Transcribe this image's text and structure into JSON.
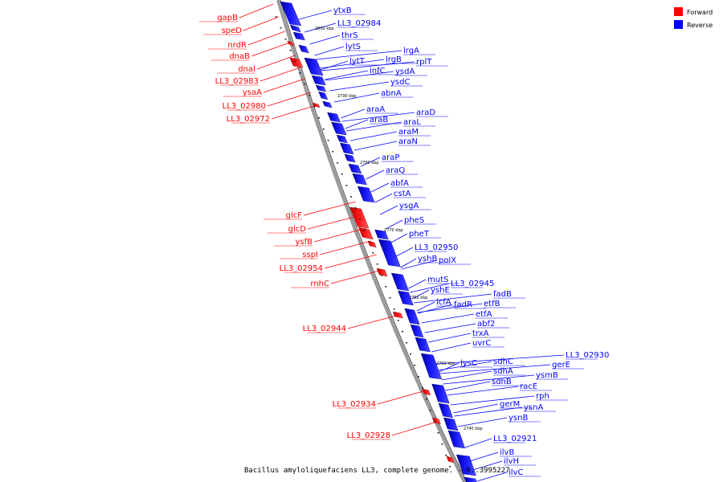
{
  "caption": "Bacillus amyloliquefaciens LL3, complete genome. - 0..3995227",
  "legend": [
    {
      "label": "Forward",
      "color": "#ff0000"
    },
    {
      "label": "Reverse",
      "color": "#0000ff"
    }
  ],
  "colors": {
    "forward": "#ff0000",
    "reverse": "#0000ff",
    "backbone": "#999999"
  },
  "ticks": [
    "2800 kbp",
    "2790 kbp",
    "2780 kbp",
    "2770 kbp",
    "2760 kbp",
    "2750 kbp",
    "2740 kbp"
  ],
  "forward_labels": [
    "gapB",
    "speD",
    "nrdR",
    "dnaB",
    "dnaI",
    "LL3_02983",
    "ysaA",
    "LL3_02980",
    "LL3_02972",
    "glcF",
    "glcD",
    "ysfB",
    "sspI",
    "LL3_02954",
    "rnhC",
    "LL3_02944",
    "LL3_02934",
    "LL3_02928"
  ],
  "reverse_labels": [
    "ytxB",
    "LL3_02984",
    "thrS",
    "lytS",
    "lytT",
    "lrgA",
    "lrgB",
    "rplT",
    "infC",
    "ysdA",
    "ysdC",
    "abnA",
    "araA",
    "araD",
    "araB",
    "araL",
    "araM",
    "araN",
    "araP",
    "araQ",
    "abfA",
    "cstA",
    "ysgA",
    "pheS",
    "pheT",
    "LL3_02950",
    "yshB",
    "polX",
    "mutS",
    "yshE",
    "LL3_02945",
    "fadB",
    "lcfA",
    "fadR",
    "etfB",
    "etfA",
    "abf2",
    "trxA",
    "uvrC",
    "lysC",
    "sdhC",
    "LL3_02930",
    "gerE",
    "sdhA",
    "ysmB",
    "sdhB",
    "racE",
    "rph",
    "gerM",
    "ysnA",
    "ysnB",
    "LL3_02921",
    "ilvB",
    "ilvH",
    "ilvC"
  ]
}
